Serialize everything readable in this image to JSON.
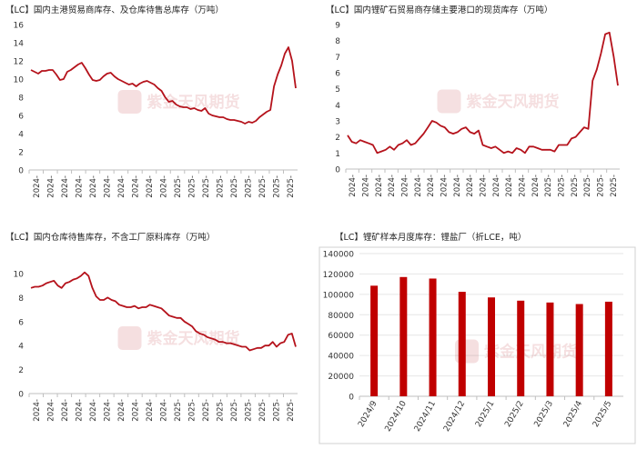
{
  "watermark": "紫金天风期货",
  "chart_data": [
    {
      "id": "p1",
      "type": "line",
      "title": "【LC】国内主港贸易商库存、及仓库待售总库存（万吨）",
      "ylim": [
        0,
        16
      ],
      "yticks": [
        0,
        2,
        4,
        6,
        8,
        10,
        12,
        14,
        16
      ],
      "xticklabels": [
        "2024-",
        "2024-",
        "2024-",
        "2024-",
        "2024-",
        "2024-",
        "2024-",
        "2024-",
        "2024-",
        "2024-",
        "2025-",
        "2025-",
        "2025-",
        "2025-",
        "2025-",
        "2025-",
        "2025-",
        "2025-",
        "2025-"
      ],
      "color": "#b5121b",
      "series": [
        {
          "values": [
            11.0,
            10.8,
            10.6,
            10.9,
            10.9,
            11.0,
            11.0,
            10.5,
            9.9,
            10.0,
            10.8,
            11.0,
            11.3,
            11.6,
            11.8,
            11.2,
            10.5,
            9.9,
            9.8,
            9.9,
            10.3,
            10.6,
            10.7,
            10.3,
            10.0,
            9.8,
            9.6,
            9.4,
            9.5,
            9.2,
            9.5,
            9.7,
            9.8,
            9.6,
            9.4,
            9.0,
            8.7,
            8.0,
            7.5,
            7.6,
            7.2,
            7.0,
            6.9,
            6.9,
            6.7,
            6.8,
            6.6,
            6.5,
            6.8,
            6.2,
            6.0,
            5.9,
            5.8,
            5.8,
            5.6,
            5.5,
            5.5,
            5.4,
            5.3,
            5.1,
            5.3,
            5.2,
            5.4,
            5.8,
            6.1,
            6.4,
            6.6,
            9.2,
            10.5,
            11.5,
            12.8,
            13.5,
            12.0,
            9.0
          ]
        }
      ]
    },
    {
      "id": "p2",
      "type": "line",
      "title": "【LC】国内锂矿石贸易商存储主要港口的现货库存（万吨）",
      "ylim": [
        0,
        9
      ],
      "yticks": [
        0,
        1,
        2,
        3,
        4,
        5,
        6,
        7,
        8,
        9
      ],
      "xticklabels": [
        "2024-",
        "2024-",
        "2024-",
        "2024-",
        "2024-",
        "2024-",
        "2024-",
        "2024-",
        "2024-",
        "2024-",
        "2024-",
        "2024-",
        "2024-",
        "2024-",
        "2024-",
        "2025-",
        "2025-",
        "2025-",
        "2025-",
        "2025-",
        "2025-"
      ],
      "color": "#b5121b",
      "series": [
        {
          "values": [
            2.1,
            1.7,
            1.6,
            1.8,
            1.7,
            1.6,
            1.5,
            1.0,
            1.1,
            1.2,
            1.4,
            1.2,
            1.5,
            1.6,
            1.8,
            1.5,
            1.6,
            1.9,
            2.2,
            2.6,
            3.0,
            2.9,
            2.7,
            2.6,
            2.3,
            2.2,
            2.3,
            2.5,
            2.6,
            2.3,
            2.2,
            2.4,
            1.5,
            1.4,
            1.3,
            1.4,
            1.2,
            1.0,
            1.1,
            1.0,
            1.3,
            1.2,
            1.0,
            1.4,
            1.4,
            1.3,
            1.2,
            1.2,
            1.2,
            1.1,
            1.5,
            1.5,
            1.5,
            1.9,
            2.0,
            2.3,
            2.6,
            2.5,
            5.5,
            6.2,
            7.2,
            8.4,
            8.5,
            7.0,
            5.2
          ]
        }
      ]
    },
    {
      "id": "p3",
      "type": "line",
      "title": "【LC】国内仓库待售库存，不含工厂原料库存（万吨）",
      "ylim": [
        0,
        10
      ],
      "yticks": [
        0,
        2,
        4,
        6,
        8,
        10
      ],
      "xticklabels": [
        "2024-",
        "2024-",
        "2024-",
        "2024-",
        "2024-",
        "2024-",
        "2024-",
        "2024-",
        "2024-",
        "2024-",
        "2025-",
        "2025-",
        "2025-",
        "2025-",
        "2025-",
        "2025-",
        "2025-",
        "2025-",
        "2025-"
      ],
      "color": "#b5121b",
      "series": [
        {
          "values": [
            8.8,
            8.9,
            8.9,
            9.0,
            9.2,
            9.3,
            9.4,
            9.0,
            8.8,
            9.2,
            9.3,
            9.5,
            9.6,
            9.8,
            10.1,
            9.8,
            8.8,
            8.1,
            7.8,
            7.8,
            8.0,
            7.8,
            7.7,
            7.4,
            7.3,
            7.2,
            7.2,
            7.3,
            7.1,
            7.2,
            7.2,
            7.4,
            7.3,
            7.2,
            7.1,
            6.8,
            6.5,
            6.4,
            6.3,
            6.3,
            6.0,
            5.8,
            5.6,
            5.2,
            5.0,
            4.9,
            4.7,
            4.6,
            4.5,
            4.3,
            4.3,
            4.2,
            4.2,
            4.1,
            4.0,
            3.9,
            3.9,
            3.6,
            3.7,
            3.8,
            3.8,
            4.0,
            4.0,
            4.3,
            3.9,
            4.2,
            4.3,
            4.9,
            5.0,
            3.9
          ]
        }
      ]
    },
    {
      "id": "p4",
      "type": "bar",
      "title": "【LC】锂矿样本月度库存：锂盐厂（折LCE，吨）",
      "ylim": [
        0,
        140000
      ],
      "yticks": [
        0,
        20000,
        40000,
        60000,
        80000,
        100000,
        120000,
        140000
      ],
      "categories": [
        "2024/9",
        "2024/10",
        "2024/11",
        "2024/12",
        "2025/1",
        "2025/2",
        "2025/3",
        "2025/4",
        "2025/5"
      ],
      "values": [
        108500,
        117000,
        115500,
        102500,
        97000,
        93800,
        92000,
        90500,
        92800
      ],
      "color": "#c00000"
    }
  ]
}
